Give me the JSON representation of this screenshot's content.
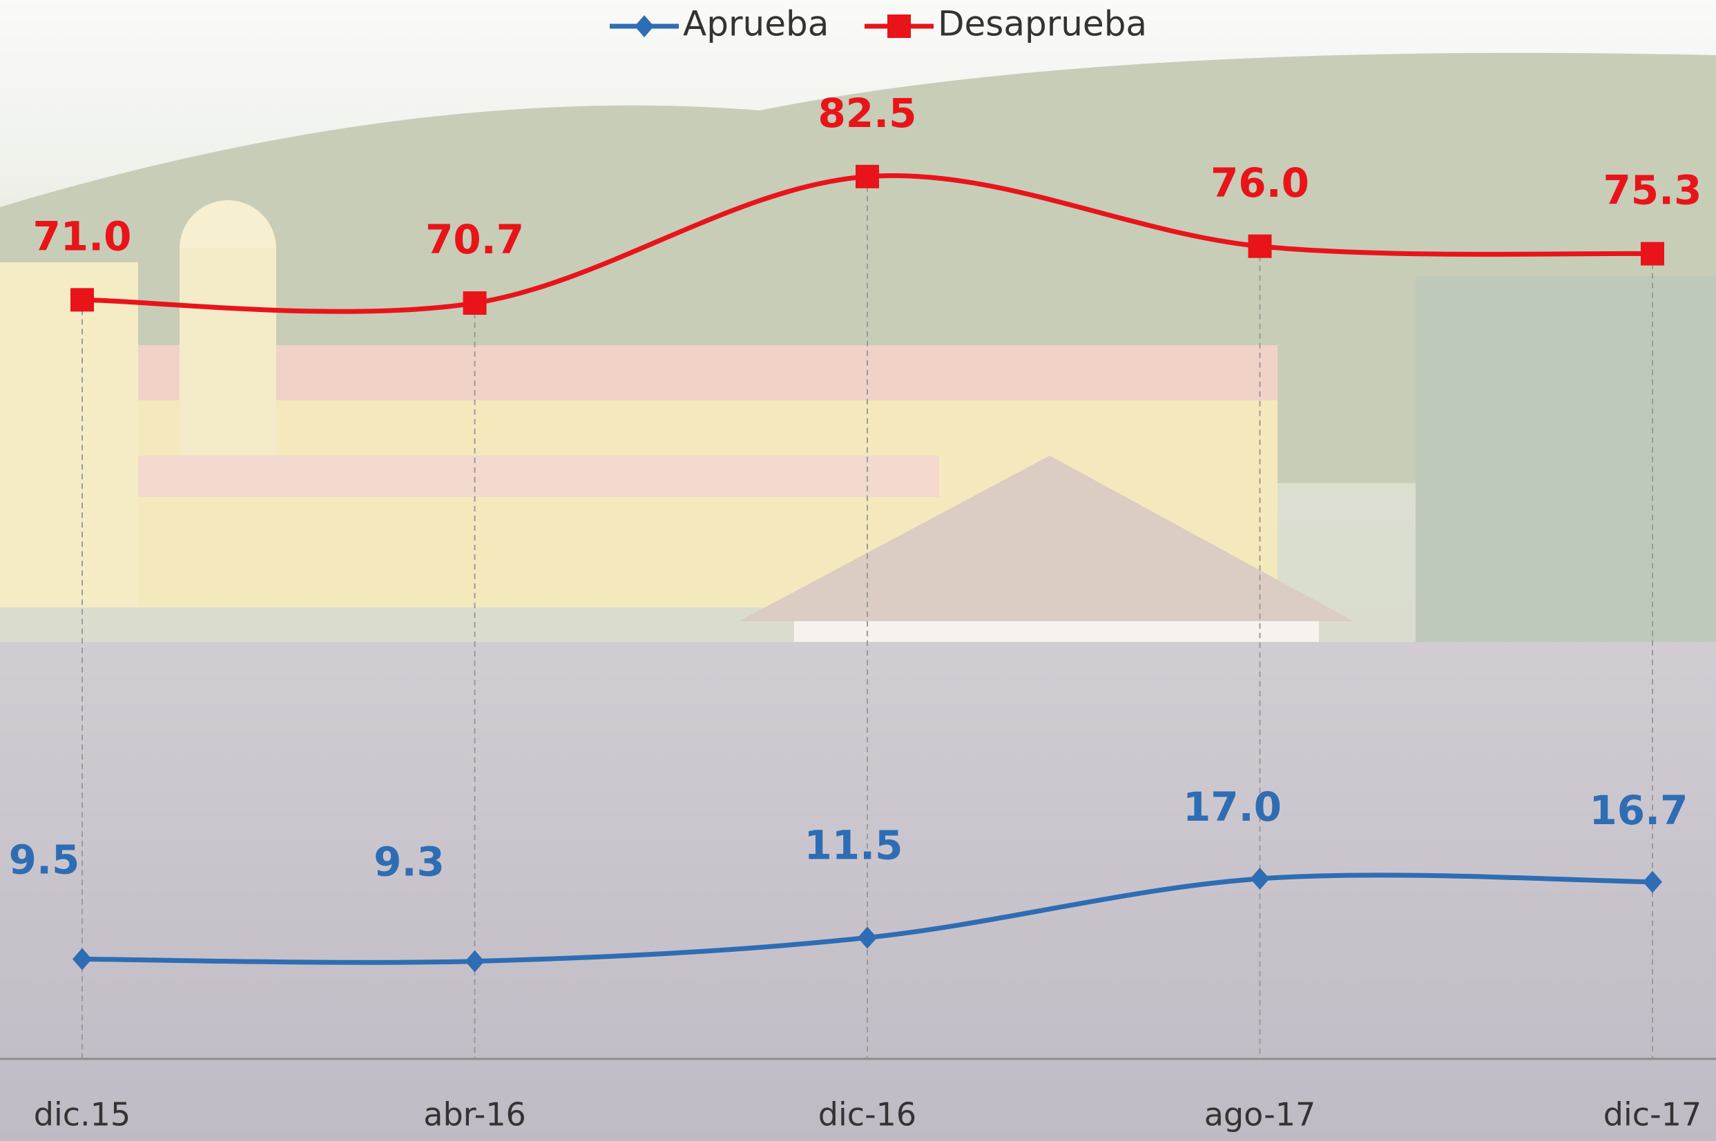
{
  "chart_data": {
    "type": "line",
    "categories": [
      "dic.15",
      "abr-16",
      "dic-16",
      "ago-17",
      "dic-17"
    ],
    "series": [
      {
        "name": "Aprueba",
        "color": "#2e6db4",
        "values": [
          9.5,
          9.3,
          11.5,
          17.0,
          16.7
        ],
        "value_labels": [
          "9.5",
          "9.3",
          "11.5",
          "17.0",
          "16.7"
        ]
      },
      {
        "name": "Desaprueba",
        "color": "#e8141a",
        "values": [
          71.0,
          70.7,
          82.5,
          76.0,
          75.3
        ],
        "value_labels": [
          "71.0",
          "70.7",
          "82.5",
          "76.0",
          "75.3"
        ]
      }
    ],
    "ylim": [
      0,
      100
    ],
    "legend": "top"
  }
}
